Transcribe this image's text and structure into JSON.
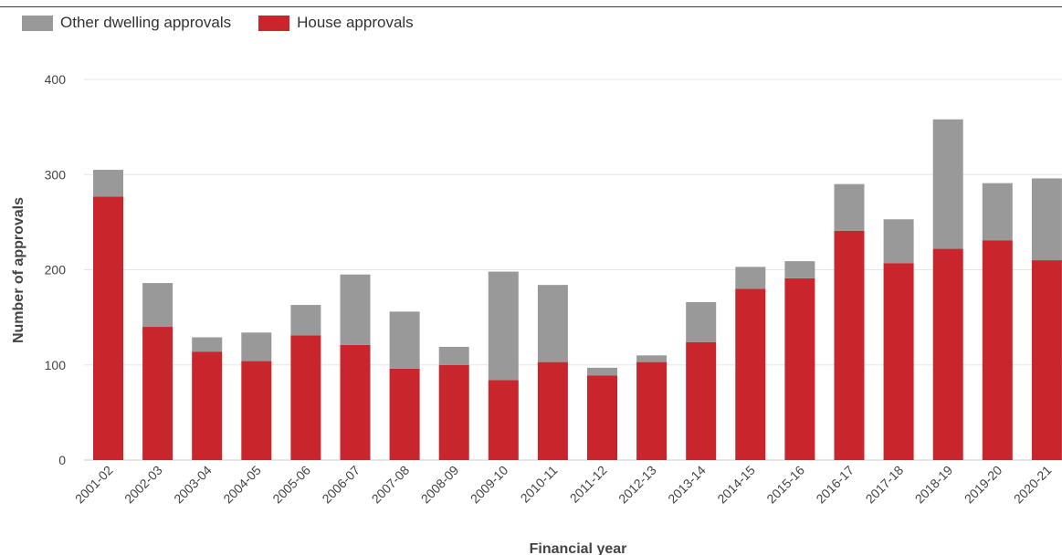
{
  "chart_data": {
    "type": "bar",
    "stacked": true,
    "categories": [
      "2001-02",
      "2002-03",
      "2003-04",
      "2004-05",
      "2005-06",
      "2006-07",
      "2007-08",
      "2008-09",
      "2009-10",
      "2010-11",
      "2011-12",
      "2012-13",
      "2013-14",
      "2014-15",
      "2015-16",
      "2016-17",
      "2017-18",
      "2018-19",
      "2019-20",
      "2020-21"
    ],
    "series": [
      {
        "name": "House approvals",
        "color": "#c8262c",
        "values": [
          277,
          140,
          114,
          104,
          131,
          121,
          96,
          100,
          84,
          103,
          89,
          103,
          124,
          180,
          191,
          241,
          207,
          222,
          231,
          210
        ]
      },
      {
        "name": "Other dwelling approvals",
        "color": "#999999",
        "values": [
          28,
          46,
          15,
          30,
          32,
          74,
          60,
          19,
          114,
          81,
          8,
          7,
          42,
          23,
          18,
          49,
          46,
          136,
          60,
          86
        ]
      }
    ],
    "legend": [
      {
        "label": "Other dwelling approvals",
        "color": "#999999"
      },
      {
        "label": "House approvals",
        "color": "#c8262c"
      }
    ],
    "legend_position": "top-left",
    "xlabel": "Financial year",
    "ylabel": "Number of approvals",
    "ylim": [
      0,
      400
    ],
    "yticks": [
      0,
      100,
      200,
      300,
      400
    ],
    "grid": true,
    "gridline_color": "#e6e6e6"
  }
}
